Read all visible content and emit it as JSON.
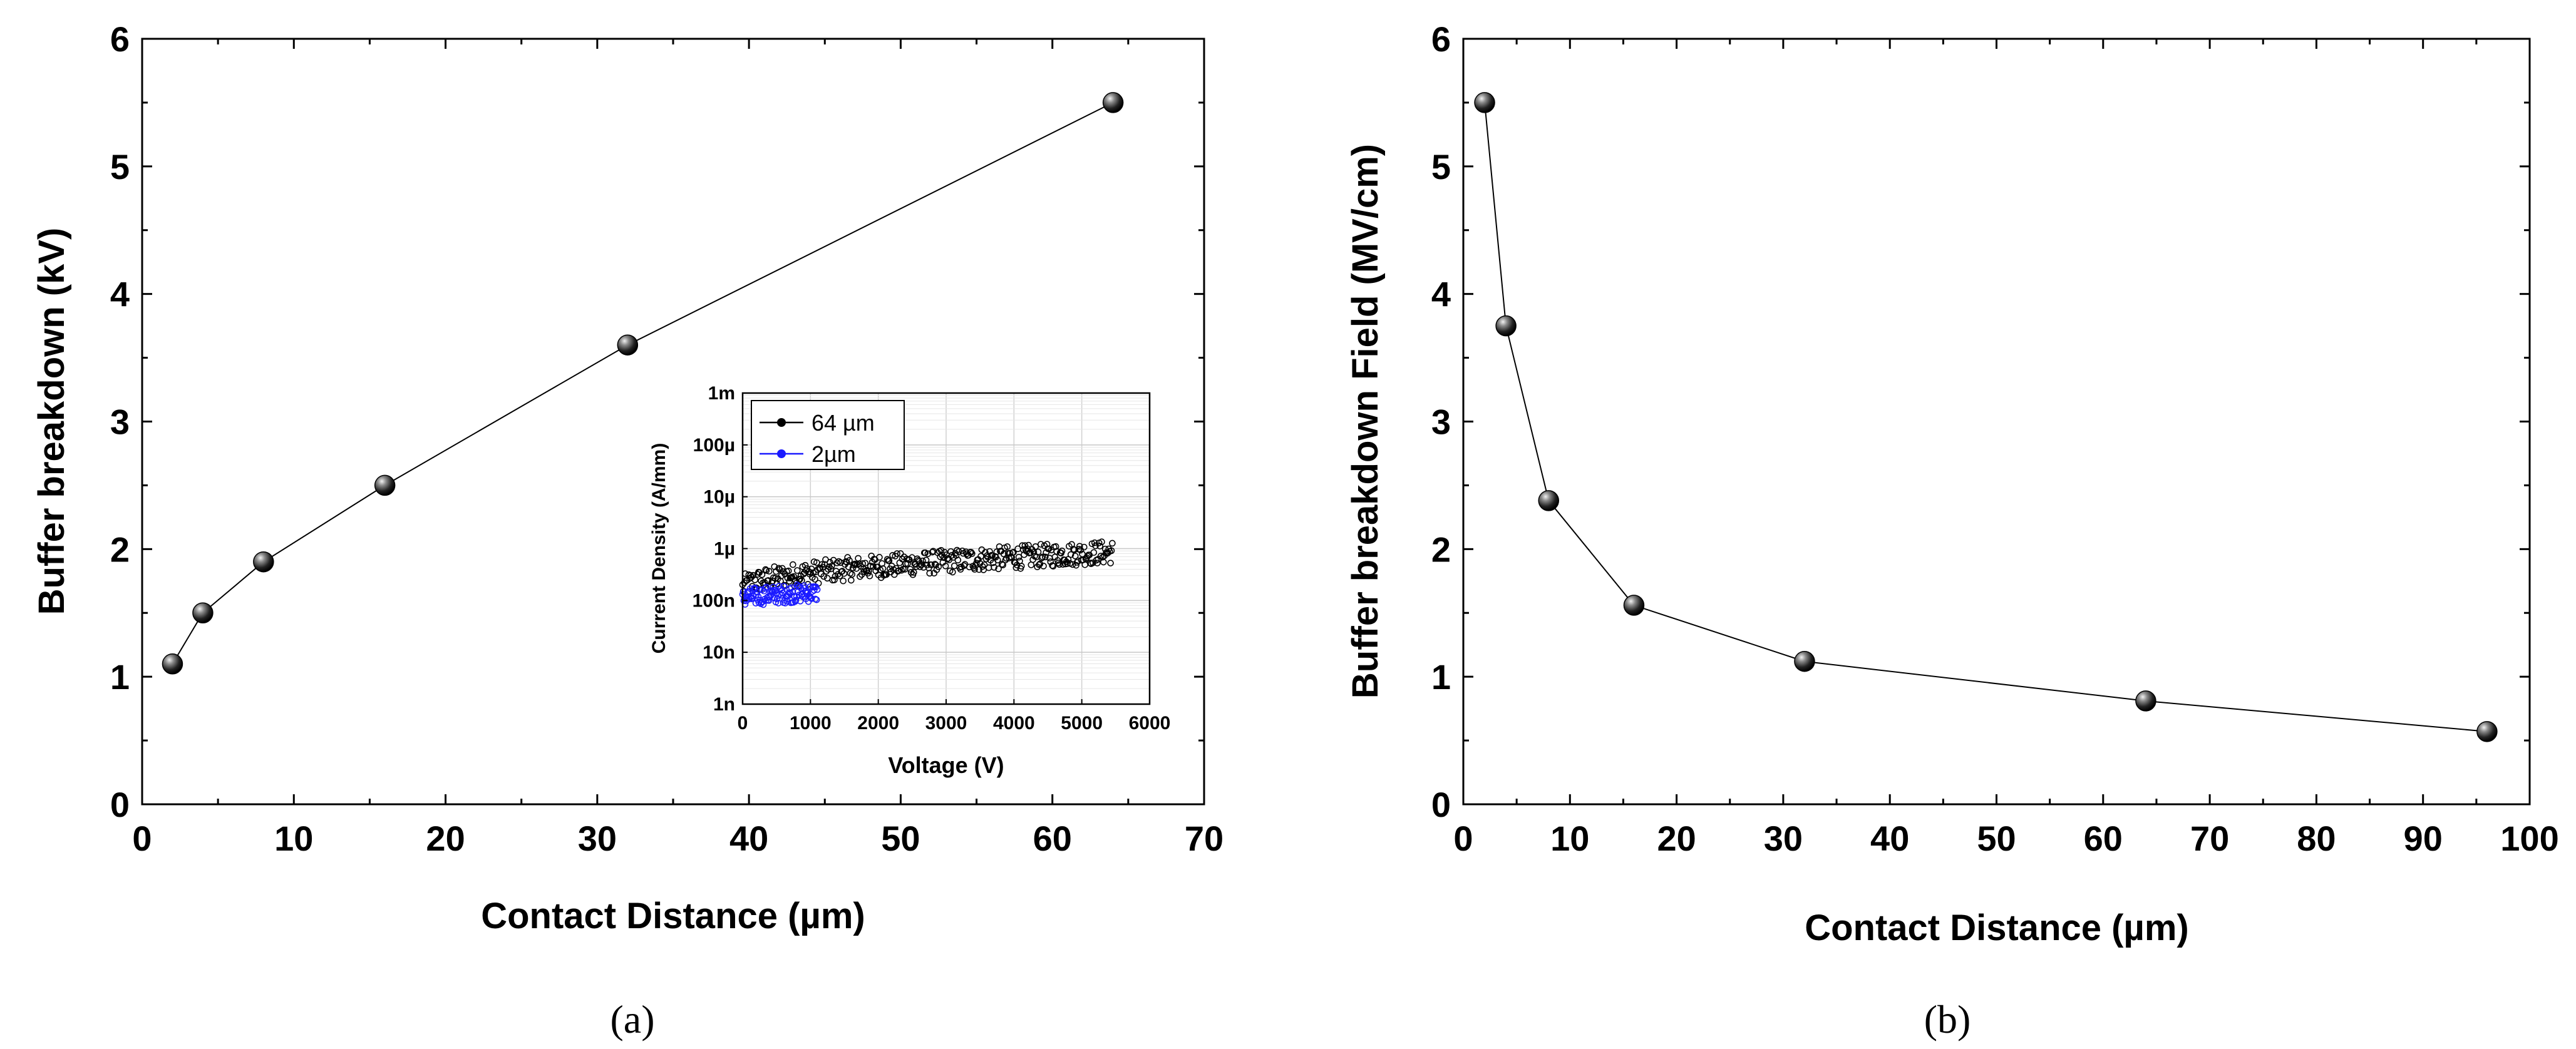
{
  "chart_data": [
    {
      "id": "a",
      "type": "line",
      "caption": "(a)",
      "xlabel": "Contact Distance (µm)",
      "ylabel": "Buffer breakdown (kV)",
      "xlim": [
        0,
        70
      ],
      "ylim": [
        0,
        6
      ],
      "xticks": [
        0,
        10,
        20,
        30,
        40,
        50,
        60,
        70
      ],
      "yticks": [
        0,
        1,
        2,
        3,
        4,
        5,
        6
      ],
      "series": [
        {
          "name": "Buffer breakdown",
          "x": [
            2,
            4,
            8,
            16,
            32,
            64
          ],
          "y": [
            1.1,
            1.5,
            1.9,
            2.5,
            3.6,
            5.5
          ]
        }
      ],
      "inset": {
        "type": "scatter",
        "xlabel": "Voltage (V)",
        "ylabel": "Current Density (A/mm)",
        "xlim": [
          0,
          6000
        ],
        "xticks": [
          0,
          1000,
          2000,
          3000,
          4000,
          5000,
          6000
        ],
        "yscale": "log",
        "ytick_labels": [
          "1n",
          "10n",
          "100n",
          "1µ",
          "10µ",
          "100µ",
          "1m"
        ],
        "legend": [
          "64 µm",
          "2µm"
        ],
        "series": [
          {
            "name": "64 µm",
            "color": "#000000",
            "x_range": [
              0,
              5450
            ],
            "y_start": 2e-07,
            "y_end": 1e-06
          },
          {
            "name": "2µm",
            "color": "#1a1aff",
            "x_range": [
              0,
              1100
            ],
            "y_start": 1.2e-07,
            "y_end": 1.6e-07
          }
        ]
      }
    },
    {
      "id": "b",
      "type": "line",
      "caption": "(b)",
      "xlabel": "Contact Distance (µm)",
      "ylabel": "Buffer breakdown Field (MV/cm)",
      "xlim": [
        0,
        100
      ],
      "ylim": [
        0,
        6
      ],
      "xticks": [
        0,
        10,
        20,
        30,
        40,
        50,
        60,
        70,
        80,
        90,
        100
      ],
      "yticks": [
        0,
        1,
        2,
        3,
        4,
        5,
        6
      ],
      "series": [
        {
          "name": "Buffer breakdown Field",
          "x": [
            2,
            4,
            8,
            16,
            32,
            64,
            96
          ],
          "y": [
            5.5,
            3.75,
            2.38,
            1.56,
            1.12,
            0.81,
            0.57
          ]
        }
      ]
    }
  ]
}
